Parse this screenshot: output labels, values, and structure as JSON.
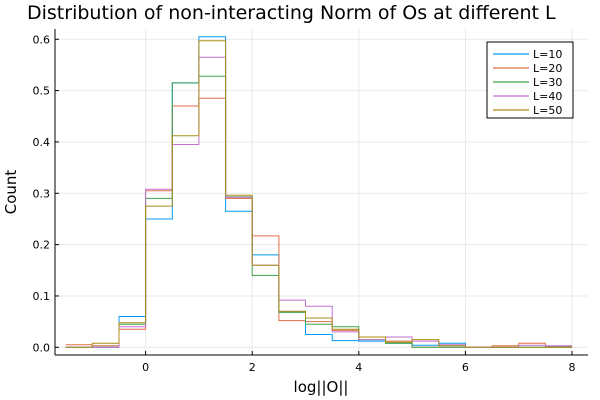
{
  "chart_data": {
    "type": "line",
    "style": "step-histogram",
    "title": "Distribution of non-interacting Norm of Os at different L",
    "xlabel": "log||O||",
    "ylabel": "Count",
    "xlim": [
      -1.7,
      8.3
    ],
    "ylim": [
      -0.015,
      0.62
    ],
    "xticks": [
      0,
      2,
      4,
      6,
      8
    ],
    "yticks": [
      0.0,
      0.1,
      0.2,
      0.3,
      0.4,
      0.5,
      0.6
    ],
    "xtick_labels": [
      "0",
      "2",
      "4",
      "6",
      "8"
    ],
    "ytick_labels": [
      "0.0",
      "0.1",
      "0.2",
      "0.3",
      "0.4",
      "0.5",
      "0.6"
    ],
    "grid": true,
    "legend_position": "top-right",
    "bin_edges": [
      -1.5,
      -1.0,
      -0.5,
      0.0,
      0.5,
      1.0,
      1.5,
      2.0,
      2.5,
      3.0,
      3.5,
      4.0,
      4.5,
      5.0,
      5.5,
      6.0,
      6.5,
      7.0,
      7.5,
      8.0
    ],
    "series": [
      {
        "name": "L=10",
        "color": "#009af9",
        "values": [
          0.0,
          0.0,
          0.06,
          0.25,
          0.515,
          0.605,
          0.265,
          0.18,
          0.07,
          0.025,
          0.013,
          0.012,
          0.008,
          0.004,
          0.008,
          0.0,
          0.0,
          0.0,
          0.0
        ]
      },
      {
        "name": "L=20",
        "color": "#e26f46",
        "values": [
          0.005,
          0.003,
          0.035,
          0.305,
          0.47,
          0.485,
          0.29,
          0.217,
          0.052,
          0.05,
          0.033,
          0.02,
          0.012,
          0.0,
          0.0,
          0.0,
          0.003,
          0.008,
          0.002
        ]
      },
      {
        "name": "L=30",
        "color": "#3da44d",
        "values": [
          0.0,
          0.0,
          0.045,
          0.29,
          0.515,
          0.528,
          0.293,
          0.14,
          0.068,
          0.045,
          0.04,
          0.015,
          0.008,
          0.0,
          0.0,
          0.0,
          0.0,
          0.0,
          0.0
        ]
      },
      {
        "name": "L=40",
        "color": "#c271d2",
        "values": [
          0.0,
          0.0,
          0.04,
          0.308,
          0.395,
          0.565,
          0.292,
          0.16,
          0.092,
          0.08,
          0.03,
          0.015,
          0.02,
          0.012,
          0.005,
          0.0,
          0.0,
          0.004,
          0.003
        ]
      },
      {
        "name": "L=50",
        "color": "#ac8d18",
        "values": [
          0.0,
          0.008,
          0.048,
          0.275,
          0.412,
          0.597,
          0.296,
          0.16,
          0.07,
          0.057,
          0.035,
          0.02,
          0.01,
          0.015,
          0.003,
          0.0,
          0.0,
          0.0,
          0.0
        ]
      }
    ]
  }
}
